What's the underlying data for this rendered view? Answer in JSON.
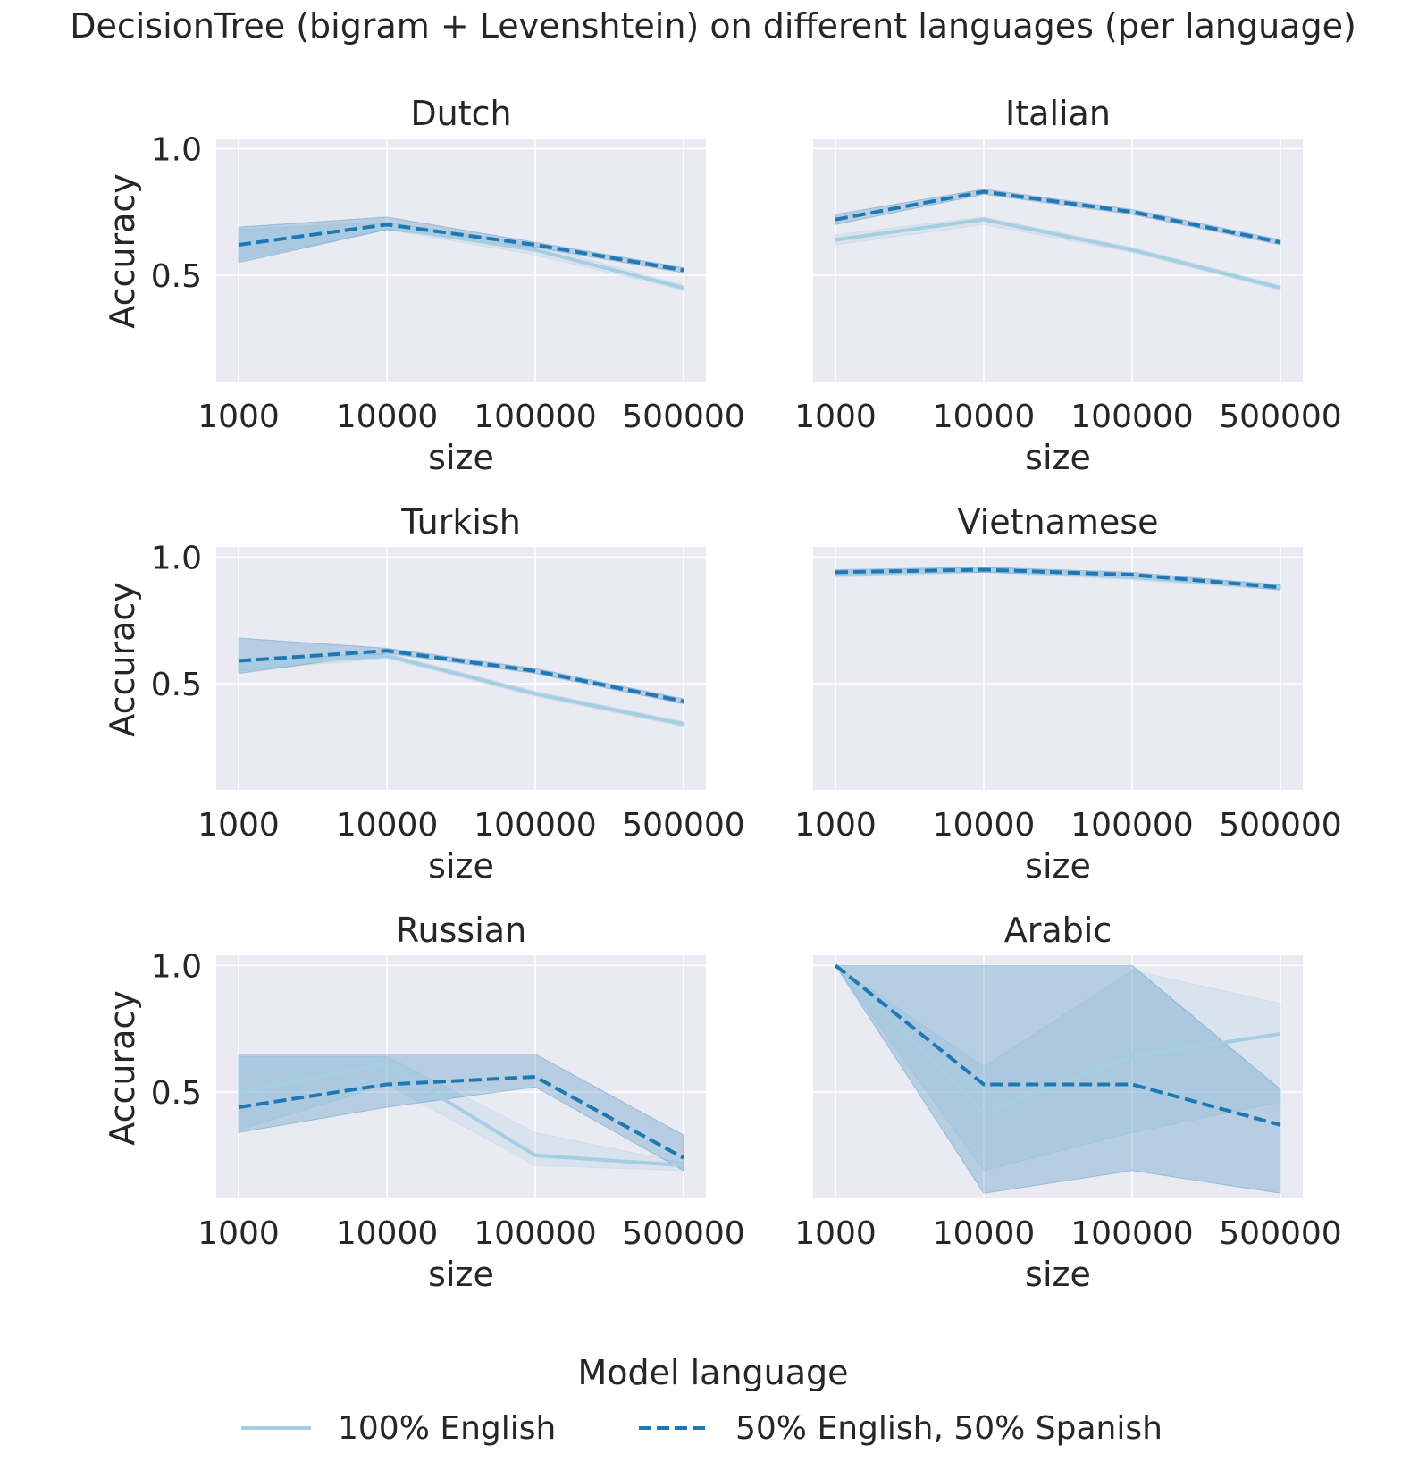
{
  "chart_data": {
    "type": "line",
    "title": "DecisionTree (bigram + Levenshtein) on different languages (per language)",
    "xlabel": "size",
    "ylabel": "Accuracy",
    "x_categories": [
      "1000",
      "10000",
      "100000",
      "500000"
    ],
    "ylim": [
      0.08,
      1.04
    ],
    "yticks": [
      0.5,
      1.0
    ],
    "ytick_labels": [
      "0.5",
      "1.0"
    ],
    "grid": true,
    "legend": {
      "title": "Model language",
      "placement": "bottom-center",
      "entries": [
        "100% English",
        "50% English, 50% Spanish"
      ]
    },
    "series_styles": [
      {
        "name": "100% English",
        "color": "#a6cee3",
        "dash": "solid"
      },
      {
        "name": "50% English, 50% Spanish",
        "color": "#1f78b4",
        "dash": "dashed"
      }
    ],
    "panels": [
      {
        "title": "Dutch",
        "series": [
          {
            "name": "100% English",
            "values": [
              0.63,
              0.69,
              0.6,
              0.45
            ],
            "ci_low": [
              0.56,
              0.68,
              0.58,
              0.44
            ],
            "ci_high": [
              0.68,
              0.71,
              0.62,
              0.46
            ]
          },
          {
            "name": "50% English, 50% Spanish",
            "values": [
              0.62,
              0.7,
              0.62,
              0.52
            ],
            "ci_low": [
              0.55,
              0.68,
              0.61,
              0.51
            ],
            "ci_high": [
              0.69,
              0.73,
              0.63,
              0.53
            ]
          }
        ]
      },
      {
        "title": "Italian",
        "series": [
          {
            "name": "100% English",
            "values": [
              0.64,
              0.72,
              0.6,
              0.45
            ],
            "ci_low": [
              0.62,
              0.7,
              0.59,
              0.44
            ],
            "ci_high": [
              0.66,
              0.73,
              0.61,
              0.46
            ]
          },
          {
            "name": "50% English, 50% Spanish",
            "values": [
              0.72,
              0.83,
              0.75,
              0.63
            ],
            "ci_low": [
              0.7,
              0.82,
              0.74,
              0.62
            ],
            "ci_high": [
              0.74,
              0.84,
              0.76,
              0.64
            ]
          }
        ]
      },
      {
        "title": "Turkish",
        "series": [
          {
            "name": "100% English",
            "values": [
              0.57,
              0.61,
              0.46,
              0.34
            ],
            "ci_low": [
              0.55,
              0.6,
              0.45,
              0.33
            ],
            "ci_high": [
              0.59,
              0.62,
              0.47,
              0.35
            ]
          },
          {
            "name": "50% English, 50% Spanish",
            "values": [
              0.59,
              0.63,
              0.55,
              0.43
            ],
            "ci_low": [
              0.54,
              0.62,
              0.54,
              0.42
            ],
            "ci_high": [
              0.68,
              0.64,
              0.56,
              0.44
            ]
          }
        ]
      },
      {
        "title": "Vietnamese",
        "series": [
          {
            "name": "100% English",
            "values": [
              0.93,
              0.95,
              0.92,
              0.88
            ],
            "ci_low": [
              0.92,
              0.94,
              0.91,
              0.87
            ],
            "ci_high": [
              0.94,
              0.96,
              0.93,
              0.89
            ]
          },
          {
            "name": "50% English, 50% Spanish",
            "values": [
              0.94,
              0.95,
              0.93,
              0.88
            ],
            "ci_low": [
              0.93,
              0.94,
              0.92,
              0.87
            ],
            "ci_high": [
              0.95,
              0.96,
              0.94,
              0.89
            ]
          }
        ]
      },
      {
        "title": "Russian",
        "series": [
          {
            "name": "100% English",
            "values": [
              0.5,
              0.61,
              0.25,
              0.21
            ],
            "ci_low": [
              0.35,
              0.53,
              0.21,
              0.19
            ],
            "ci_high": [
              0.64,
              0.64,
              0.34,
              0.22
            ]
          },
          {
            "name": "50% English, 50% Spanish",
            "values": [
              0.44,
              0.53,
              0.56,
              0.24
            ],
            "ci_low": [
              0.34,
              0.44,
              0.52,
              0.19
            ],
            "ci_high": [
              0.65,
              0.65,
              0.65,
              0.33
            ]
          }
        ]
      },
      {
        "title": "Arabic",
        "series": [
          {
            "name": "100% English",
            "values": [
              1.0,
              0.42,
              0.64,
              0.73
            ],
            "ci_low": [
              1.0,
              0.19,
              0.34,
              0.46
            ],
            "ci_high": [
              1.0,
              0.6,
              0.98,
              0.85
            ]
          },
          {
            "name": "50% English, 50% Spanish",
            "values": [
              1.0,
              0.53,
              0.53,
              0.37
            ],
            "ci_low": [
              1.0,
              0.1,
              0.19,
              0.1
            ],
            "ci_high": [
              1.0,
              1.0,
              1.0,
              0.51
            ]
          }
        ]
      }
    ]
  }
}
